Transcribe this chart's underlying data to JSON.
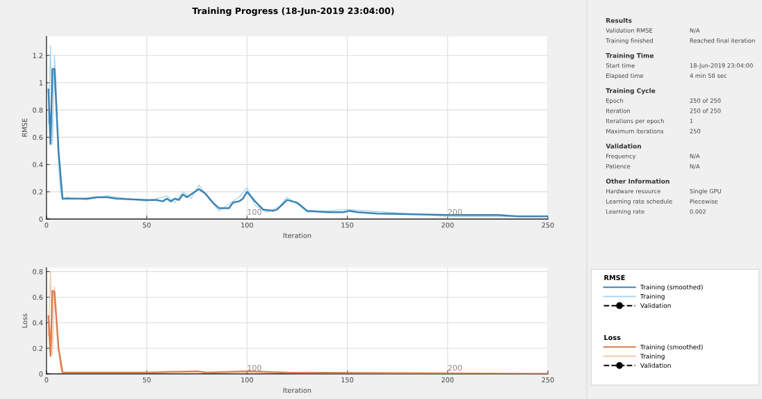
{
  "chart_data": [
    {
      "type": "line",
      "title": "Training Progress (18-Jun-2019 23:04:00)",
      "xlabel": "Iteration",
      "ylabel": "RMSE",
      "xlim": [
        0,
        250
      ],
      "ylim": [
        0,
        1.34
      ],
      "xticks": [
        0,
        50,
        100,
        150,
        200,
        250
      ],
      "yticks": [
        0,
        0.2,
        0.4,
        0.6,
        0.8,
        1,
        1.2
      ],
      "grid": true,
      "legend": "right",
      "legend_title": "RMSE",
      "annotations": [
        "100",
        "200"
      ],
      "series": [
        {
          "name": "Training (smoothed)",
          "color": "#3c84b4",
          "x": [
            1,
            2,
            3,
            4,
            6,
            8,
            20,
            25,
            30,
            35,
            50,
            55,
            58,
            60,
            62,
            64,
            66,
            68,
            70,
            72,
            76,
            79,
            83,
            86,
            91,
            93,
            96,
            98,
            100,
            104,
            108,
            113,
            115,
            120,
            125,
            130,
            140,
            148,
            151,
            155,
            165,
            200,
            220,
            225,
            235,
            250
          ],
          "values": [
            0.95,
            0.55,
            1.1,
            1.1,
            0.5,
            0.15,
            0.15,
            0.16,
            0.16,
            0.15,
            0.14,
            0.14,
            0.13,
            0.15,
            0.13,
            0.15,
            0.14,
            0.18,
            0.16,
            0.18,
            0.22,
            0.19,
            0.12,
            0.08,
            0.08,
            0.12,
            0.13,
            0.15,
            0.2,
            0.13,
            0.07,
            0.06,
            0.07,
            0.14,
            0.12,
            0.06,
            0.05,
            0.05,
            0.06,
            0.05,
            0.04,
            0.03,
            0.03,
            0.03,
            0.02,
            0.02
          ]
        },
        {
          "name": "Training",
          "color": "#a9d5ee",
          "x": [
            1,
            2,
            3,
            4,
            5,
            6,
            7,
            8,
            10,
            20,
            30,
            50,
            60,
            64,
            68,
            72,
            76,
            80,
            86,
            90,
            96,
            100,
            104,
            110,
            116,
            120,
            126,
            130,
            150,
            200,
            250
          ],
          "values": [
            0.7,
            1.27,
            0.55,
            1.2,
            0.9,
            0.4,
            0.2,
            0.14,
            0.16,
            0.14,
            0.17,
            0.13,
            0.17,
            0.12,
            0.2,
            0.15,
            0.25,
            0.17,
            0.06,
            0.1,
            0.16,
            0.23,
            0.1,
            0.05,
            0.09,
            0.16,
            0.1,
            0.05,
            0.07,
            0.02,
            0.02
          ]
        },
        {
          "name": "Validation",
          "color": "#000000",
          "marker": "circle",
          "line_style": "dashed"
        }
      ]
    },
    {
      "type": "line",
      "xlabel": "Iteration",
      "ylabel": "Loss",
      "xlim": [
        0,
        250
      ],
      "ylim": [
        0,
        0.83
      ],
      "xticks": [
        0,
        50,
        100,
        150,
        200,
        250
      ],
      "yticks": [
        0,
        0.2,
        0.4,
        0.6,
        0.8
      ],
      "grid": true,
      "legend": "right",
      "legend_title": "Loss",
      "annotations": [
        "100",
        "200"
      ],
      "series": [
        {
          "name": "Training (smoothed)",
          "color": "#d9804f",
          "x": [
            1,
            2,
            3,
            4,
            6,
            8,
            50,
            75,
            80,
            100,
            120,
            250
          ],
          "values": [
            0.45,
            0.14,
            0.65,
            0.64,
            0.2,
            0.01,
            0.01,
            0.02,
            0.01,
            0.02,
            0.01,
            0.0
          ]
        },
        {
          "name": "Training",
          "color": "#f6c7a6",
          "x": [
            1,
            2,
            3,
            4,
            5,
            7,
            8
          ],
          "values": [
            0.3,
            0.8,
            0.15,
            0.68,
            0.4,
            0.05,
            0.01
          ]
        },
        {
          "name": "Validation",
          "color": "#000000",
          "marker": "circle",
          "line_style": "dashed"
        }
      ]
    },
    {
      "type": "other",
      "title": "Results",
      "annotations": [
        "Validation RMSE",
        "N/A",
        "Training finished",
        "Reached final iteration"
      ]
    },
    {
      "type": "other",
      "title": "Training Time",
      "annotations": [
        "Start time",
        "18-Jun-2019 23:04:00",
        "Elapsed time",
        "4 min 58 sec"
      ]
    },
    {
      "type": "other",
      "title": "Training Cycle",
      "annotations": [
        "Epoch",
        "250 of 250",
        "Iteration",
        "250 of 250",
        "Iterations per epoch",
        "1",
        "Maximum iterations",
        "250"
      ]
    },
    {
      "type": "other",
      "title": "Validation",
      "annotations": [
        "Frequency",
        "N/A",
        "Patience",
        "N/A"
      ]
    },
    {
      "type": "other",
      "title": "Other Information",
      "annotations": [
        "Hardware resource",
        "Single GPU",
        "Learning rate schedule",
        "Piecewise",
        "Learning rate",
        "0.002"
      ]
    }
  ]
}
